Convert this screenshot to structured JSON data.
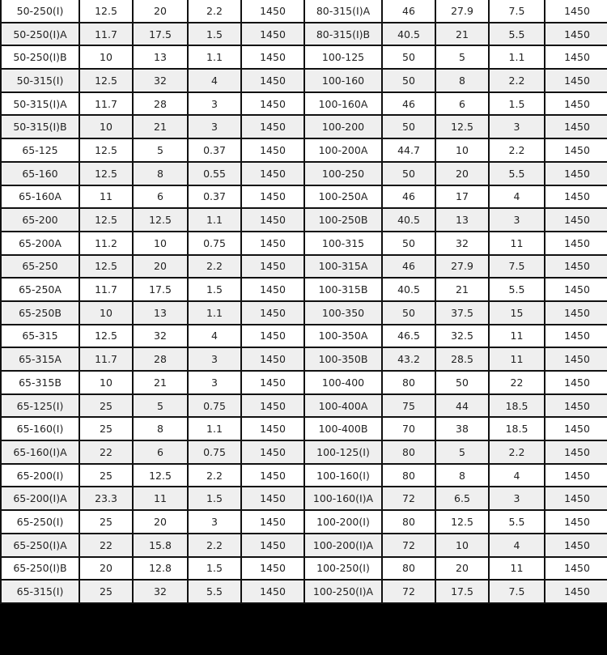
{
  "rows": [
    [
      "50-250(I)",
      "12.5",
      "20",
      "2.2",
      "1450",
      "80-315(I)A",
      "46",
      "27.9",
      "7.5",
      "1450"
    ],
    [
      "50-250(I)A",
      "11.7",
      "17.5",
      "1.5",
      "1450",
      "80-315(I)B",
      "40.5",
      "21",
      "5.5",
      "1450"
    ],
    [
      "50-250(I)B",
      "10",
      "13",
      "1.1",
      "1450",
      "100-125",
      "50",
      "5",
      "1.1",
      "1450"
    ],
    [
      "50-315(I)",
      "12.5",
      "32",
      "4",
      "1450",
      "100-160",
      "50",
      "8",
      "2.2",
      "1450"
    ],
    [
      "50-315(I)A",
      "11.7",
      "28",
      "3",
      "1450",
      "100-160A",
      "46",
      "6",
      "1.5",
      "1450"
    ],
    [
      "50-315(I)B",
      "10",
      "21",
      "3",
      "1450",
      "100-200",
      "50",
      "12.5",
      "3",
      "1450"
    ],
    [
      "65-125",
      "12.5",
      "5",
      "0.37",
      "1450",
      "100-200A",
      "44.7",
      "10",
      "2.2",
      "1450"
    ],
    [
      "65-160",
      "12.5",
      "8",
      "0.55",
      "1450",
      "100-250",
      "50",
      "20",
      "5.5",
      "1450"
    ],
    [
      "65-160A",
      "11",
      "6",
      "0.37",
      "1450",
      "100-250A",
      "46",
      "17",
      "4",
      "1450"
    ],
    [
      "65-200",
      "12.5",
      "12.5",
      "1.1",
      "1450",
      "100-250B",
      "40.5",
      "13",
      "3",
      "1450"
    ],
    [
      "65-200A",
      "11.2",
      "10",
      "0.75",
      "1450",
      "100-315",
      "50",
      "32",
      "11",
      "1450"
    ],
    [
      "65-250",
      "12.5",
      "20",
      "2.2",
      "1450",
      "100-315A",
      "46",
      "27.9",
      "7.5",
      "1450"
    ],
    [
      "65-250A",
      "11.7",
      "17.5",
      "1.5",
      "1450",
      "100-315B",
      "40.5",
      "21",
      "5.5",
      "1450"
    ],
    [
      "65-250B",
      "10",
      "13",
      "1.1",
      "1450",
      "100-350",
      "50",
      "37.5",
      "15",
      "1450"
    ],
    [
      "65-315",
      "12.5",
      "32",
      "4",
      "1450",
      "100-350A",
      "46.5",
      "32.5",
      "11",
      "1450"
    ],
    [
      "65-315A",
      "11.7",
      "28",
      "3",
      "1450",
      "100-350B",
      "43.2",
      "28.5",
      "11",
      "1450"
    ],
    [
      "65-315B",
      "10",
      "21",
      "3",
      "1450",
      "100-400",
      "80",
      "50",
      "22",
      "1450"
    ],
    [
      "65-125(I)",
      "25",
      "5",
      "0.75",
      "1450",
      "100-400A",
      "75",
      "44",
      "18.5",
      "1450"
    ],
    [
      "65-160(I)",
      "25",
      "8",
      "1.1",
      "1450",
      "100-400B",
      "70",
      "38",
      "18.5",
      "1450"
    ],
    [
      "65-160(I)A",
      "22",
      "6",
      "0.75",
      "1450",
      "100-125(I)",
      "80",
      "5",
      "2.2",
      "1450"
    ],
    [
      "65-200(I)",
      "25",
      "12.5",
      "2.2",
      "1450",
      "100-160(I)",
      "80",
      "8",
      "4",
      "1450"
    ],
    [
      "65-200(I)A",
      "23.3",
      "11",
      "1.5",
      "1450",
      "100-160(I)A",
      "72",
      "6.5",
      "3",
      "1450"
    ],
    [
      "65-250(I)",
      "25",
      "20",
      "3",
      "1450",
      "100-200(I)",
      "80",
      "12.5",
      "5.5",
      "1450"
    ],
    [
      "65-250(I)A",
      "22",
      "15.8",
      "2.2",
      "1450",
      "100-200(I)A",
      "72",
      "10",
      "4",
      "1450"
    ],
    [
      "65-250(I)B",
      "20",
      "12.8",
      "1.5",
      "1450",
      "100-250(I)",
      "80",
      "20",
      "11",
      "1450"
    ],
    [
      "65-315(I)",
      "25",
      "32",
      "5.5",
      "1450",
      "100-250(I)A",
      "72",
      "17.5",
      "7.5",
      "1450"
    ]
  ]
}
